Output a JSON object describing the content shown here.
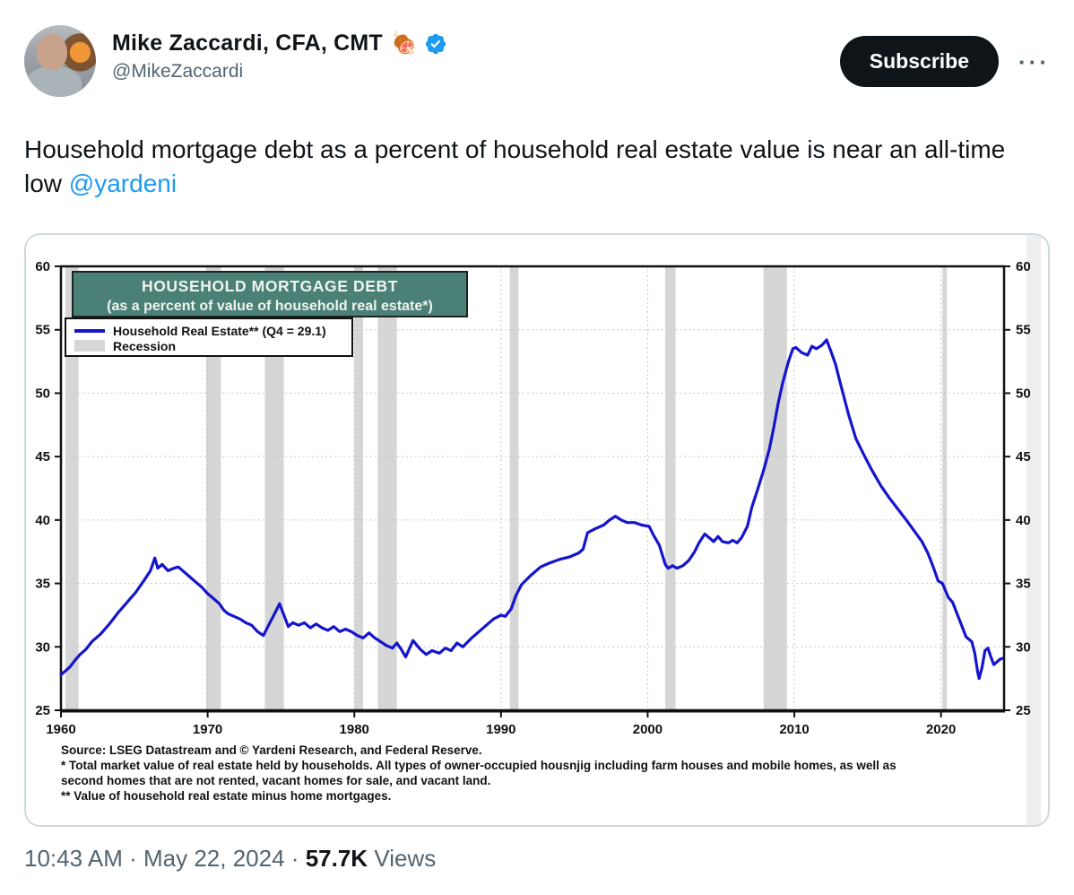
{
  "header": {
    "display_name": "Mike Zaccardi, CFA, CMT",
    "name_emoji": "🍖",
    "handle": "@MikeZaccardi",
    "subscribe_label": "Subscribe",
    "more_label": "···",
    "badge_color": "#1d9bf0"
  },
  "tweet": {
    "text_before_link": "Household mortgage debt as a percent of household real estate value is near an all-time low ",
    "link_text": "@yardeni",
    "link_color": "#1d9bf0"
  },
  "chart_card": {
    "title_line1": "HOUSEHOLD MORTGAGE DEBT",
    "title_line2": "(as a percent of value of  household real estate*)",
    "title_bg_color": "#4a8076",
    "legend_line_label": "Household Real Estate** (Q4 = 29.1)",
    "legend_recession_label": "Recession",
    "source_lines": {
      "0": "Source: LSEG Datastream and © Yardeni Research, and Federal Reserve.",
      "1": "* Total market value of real estate held by households. All types of owner-occupied housnjig including farm houses and mobile homes, as well as",
      "2": " second homes that are not rented, vacant homes for sale, and vacant land.",
      "3": "** Value of household real estate minus home mortgages."
    }
  },
  "chart_data": {
    "type": "line",
    "title": "HOUSEHOLD MORTGAGE DEBT",
    "subtitle": "(as a percent of value of  household real estate*)",
    "xlabel": "",
    "ylabel": "",
    "xlim": [
      1960,
      2024.3
    ],
    "ylim": [
      25,
      60
    ],
    "y_ticks": [
      25,
      30,
      35,
      40,
      45,
      50,
      55,
      60
    ],
    "x_ticks": [
      1960,
      1970,
      1980,
      1990,
      2000,
      2010,
      2020
    ],
    "grid": "dotted",
    "legend_position": "top-left",
    "line_color": "#1515cd",
    "recession_color": "#d6d6d6",
    "last_value_label": "Q4 = 29.1",
    "recessions": [
      [
        1960.3,
        1961.2
      ],
      [
        1969.9,
        1970.9
      ],
      [
        1973.9,
        1975.2
      ],
      [
        1980.0,
        1980.6
      ],
      [
        1981.6,
        1982.9
      ],
      [
        1990.6,
        1991.2
      ],
      [
        2001.2,
        2001.9
      ],
      [
        2007.9,
        2009.5
      ],
      [
        2020.1,
        2020.4
      ]
    ],
    "series": [
      {
        "name": "Household Real Estate** (Q4 = 29.1)",
        "points": [
          [
            1960.0,
            27.8
          ],
          [
            1960.3,
            28.1
          ],
          [
            1960.6,
            28.4
          ],
          [
            1961.0,
            29.0
          ],
          [
            1961.3,
            29.4
          ],
          [
            1961.7,
            29.8
          ],
          [
            1962.1,
            30.4
          ],
          [
            1962.7,
            31.0
          ],
          [
            1963.3,
            31.8
          ],
          [
            1963.9,
            32.7
          ],
          [
            1964.5,
            33.5
          ],
          [
            1965.1,
            34.3
          ],
          [
            1965.7,
            35.3
          ],
          [
            1966.1,
            36.0
          ],
          [
            1966.4,
            37.0
          ],
          [
            1966.6,
            36.2
          ],
          [
            1966.9,
            36.5
          ],
          [
            1967.3,
            36.0
          ],
          [
            1967.7,
            36.2
          ],
          [
            1968.0,
            36.3
          ],
          [
            1968.4,
            35.9
          ],
          [
            1968.8,
            35.5
          ],
          [
            1969.2,
            35.1
          ],
          [
            1969.6,
            34.7
          ],
          [
            1970.0,
            34.2
          ],
          [
            1970.4,
            33.8
          ],
          [
            1970.8,
            33.4
          ],
          [
            1971.1,
            32.9
          ],
          [
            1971.4,
            32.6
          ],
          [
            1971.8,
            32.4
          ],
          [
            1972.2,
            32.2
          ],
          [
            1972.6,
            31.9
          ],
          [
            1973.0,
            31.7
          ],
          [
            1973.4,
            31.2
          ],
          [
            1973.8,
            30.9
          ],
          [
            1974.2,
            31.8
          ],
          [
            1974.6,
            32.7
          ],
          [
            1974.9,
            33.4
          ],
          [
            1975.2,
            32.5
          ],
          [
            1975.5,
            31.6
          ],
          [
            1975.8,
            31.9
          ],
          [
            1976.2,
            31.7
          ],
          [
            1976.6,
            31.9
          ],
          [
            1977.0,
            31.5
          ],
          [
            1977.4,
            31.8
          ],
          [
            1977.8,
            31.5
          ],
          [
            1978.2,
            31.3
          ],
          [
            1978.6,
            31.6
          ],
          [
            1979.0,
            31.2
          ],
          [
            1979.4,
            31.4
          ],
          [
            1979.8,
            31.2
          ],
          [
            1980.2,
            30.9
          ],
          [
            1980.6,
            30.7
          ],
          [
            1981.0,
            31.1
          ],
          [
            1981.4,
            30.7
          ],
          [
            1981.8,
            30.4
          ],
          [
            1982.2,
            30.1
          ],
          [
            1982.6,
            29.9
          ],
          [
            1982.9,
            30.3
          ],
          [
            1983.2,
            29.8
          ],
          [
            1983.5,
            29.2
          ],
          [
            1984.0,
            30.5
          ],
          [
            1984.5,
            29.8
          ],
          [
            1984.9,
            29.4
          ],
          [
            1985.3,
            29.7
          ],
          [
            1985.8,
            29.5
          ],
          [
            1986.2,
            29.9
          ],
          [
            1986.6,
            29.7
          ],
          [
            1987.0,
            30.3
          ],
          [
            1987.4,
            30.0
          ],
          [
            1988.0,
            30.7
          ],
          [
            1988.5,
            31.2
          ],
          [
            1989.0,
            31.7
          ],
          [
            1989.5,
            32.2
          ],
          [
            1990.0,
            32.5
          ],
          [
            1990.3,
            32.4
          ],
          [
            1990.7,
            33.0
          ],
          [
            1991.0,
            34.0
          ],
          [
            1991.4,
            34.9
          ],
          [
            1992.0,
            35.6
          ],
          [
            1992.7,
            36.3
          ],
          [
            1993.3,
            36.6
          ],
          [
            1994.0,
            36.9
          ],
          [
            1994.7,
            37.1
          ],
          [
            1995.3,
            37.4
          ],
          [
            1995.6,
            37.7
          ],
          [
            1995.9,
            39.0
          ],
          [
            1996.4,
            39.3
          ],
          [
            1997.0,
            39.6
          ],
          [
            1997.4,
            40.0
          ],
          [
            1997.8,
            40.3
          ],
          [
            1998.2,
            40.0
          ],
          [
            1998.6,
            39.8
          ],
          [
            1999.1,
            39.8
          ],
          [
            1999.6,
            39.6
          ],
          [
            2000.1,
            39.5
          ],
          [
            2000.4,
            38.8
          ],
          [
            2000.8,
            38.0
          ],
          [
            2001.2,
            36.5
          ],
          [
            2001.4,
            36.2
          ],
          [
            2001.7,
            36.4
          ],
          [
            2002.0,
            36.2
          ],
          [
            2002.4,
            36.4
          ],
          [
            2002.8,
            36.8
          ],
          [
            2003.2,
            37.5
          ],
          [
            2003.5,
            38.2
          ],
          [
            2003.9,
            38.9
          ],
          [
            2004.2,
            38.6
          ],
          [
            2004.5,
            38.3
          ],
          [
            2004.8,
            38.7
          ],
          [
            2005.1,
            38.3
          ],
          [
            2005.5,
            38.2
          ],
          [
            2005.8,
            38.4
          ],
          [
            2006.1,
            38.2
          ],
          [
            2006.4,
            38.6
          ],
          [
            2006.8,
            39.5
          ],
          [
            2007.1,
            41.0
          ],
          [
            2007.5,
            42.4
          ],
          [
            2007.9,
            43.9
          ],
          [
            2008.3,
            45.6
          ],
          [
            2008.6,
            47.3
          ],
          [
            2008.9,
            49.2
          ],
          [
            2009.2,
            50.8
          ],
          [
            2009.6,
            52.5
          ],
          [
            2009.9,
            53.5
          ],
          [
            2010.1,
            53.6
          ],
          [
            2010.5,
            53.2
          ],
          [
            2010.9,
            53.0
          ],
          [
            2011.2,
            53.7
          ],
          [
            2011.5,
            53.5
          ],
          [
            2011.9,
            53.8
          ],
          [
            2012.2,
            54.2
          ],
          [
            2012.5,
            53.3
          ],
          [
            2012.8,
            52.3
          ],
          [
            2013.2,
            50.5
          ],
          [
            2013.7,
            48.3
          ],
          [
            2014.2,
            46.4
          ],
          [
            2014.8,
            45.0
          ],
          [
            2015.3,
            43.9
          ],
          [
            2015.9,
            42.7
          ],
          [
            2016.5,
            41.7
          ],
          [
            2017.1,
            40.8
          ],
          [
            2017.7,
            39.9
          ],
          [
            2018.2,
            39.1
          ],
          [
            2018.7,
            38.3
          ],
          [
            2019.1,
            37.4
          ],
          [
            2019.5,
            36.2
          ],
          [
            2019.8,
            35.2
          ],
          [
            2020.1,
            35.0
          ],
          [
            2020.5,
            33.9
          ],
          [
            2020.8,
            33.5
          ],
          [
            2021.1,
            32.6
          ],
          [
            2021.4,
            31.7
          ],
          [
            2021.7,
            30.8
          ],
          [
            2021.9,
            30.6
          ],
          [
            2022.1,
            30.4
          ],
          [
            2022.3,
            29.5
          ],
          [
            2022.5,
            28.0
          ],
          [
            2022.6,
            27.5
          ],
          [
            2022.8,
            28.4
          ],
          [
            2023.0,
            29.7
          ],
          [
            2023.2,
            29.9
          ],
          [
            2023.4,
            29.2
          ],
          [
            2023.6,
            28.6
          ],
          [
            2023.8,
            28.8
          ],
          [
            2024.0,
            29.0
          ],
          [
            2024.2,
            29.1
          ]
        ]
      }
    ]
  },
  "footer": {
    "time": "10:43 AM",
    "separator": "·",
    "date": "May 22, 2024",
    "views_count": "57.7K",
    "views_label": "Views"
  }
}
